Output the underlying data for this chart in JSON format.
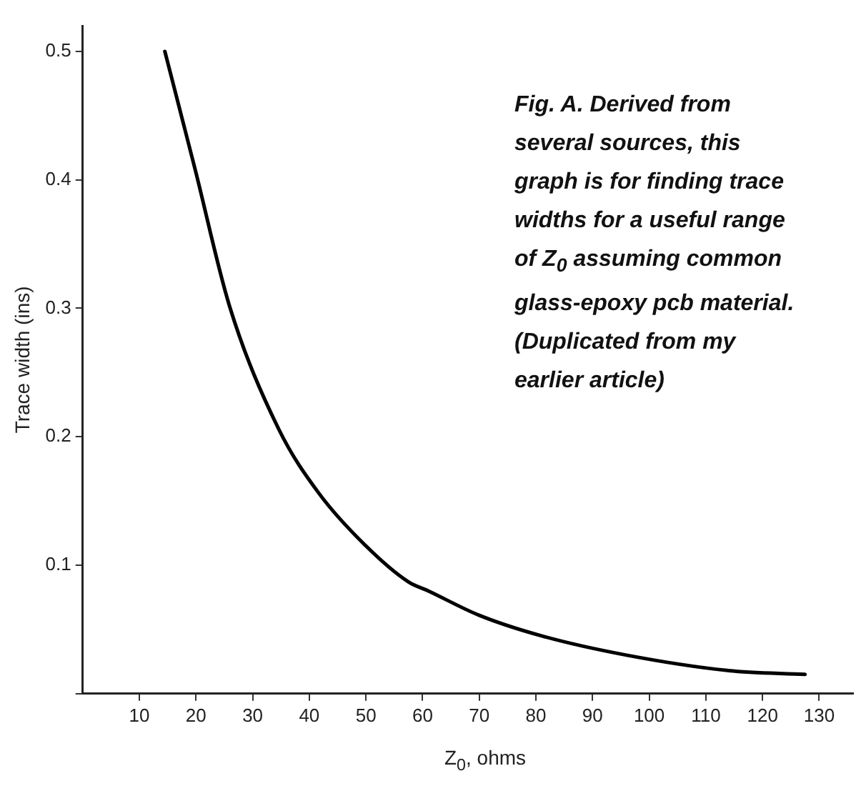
{
  "chart_data": {
    "type": "line",
    "xlabel": "Z$_{0}$, ohms",
    "ylabel": "Trace width (ins)",
    "annotations": [
      "Fig. A. Derived from several sources, this graph is for finding trace widths for a useful range of Z$_{0}$ assuming common glass-epoxy pcb material. (Duplicated from my earlier article)"
    ],
    "series": [
      {
        "color": "#000000",
        "x": [
          14.5,
          19.8,
          25.9,
          34.6,
          41.7,
          50,
          57.5,
          61,
          70,
          81,
          96,
          114,
          127.5
        ],
        "values": [
          0.5,
          0.409,
          0.302,
          0.206,
          0.156,
          0.115,
          0.087,
          0.08,
          0.061,
          0.045,
          0.03,
          0.018,
          0.015
        ]
      }
    ],
    "xlim": [
      0,
      136
    ],
    "xticks": [
      10,
      20,
      30,
      40,
      50,
      60,
      70,
      80,
      90,
      100,
      110,
      120,
      130
    ],
    "ylim": [
      0,
      0.52
    ],
    "yticks": [
      {
        "value": 0,
        "label": null
      },
      0.1,
      0.2,
      0.3,
      0.4,
      0.5
    ],
    "grid": false,
    "legend": false,
    "marker": "none",
    "line_style": "solid"
  }
}
